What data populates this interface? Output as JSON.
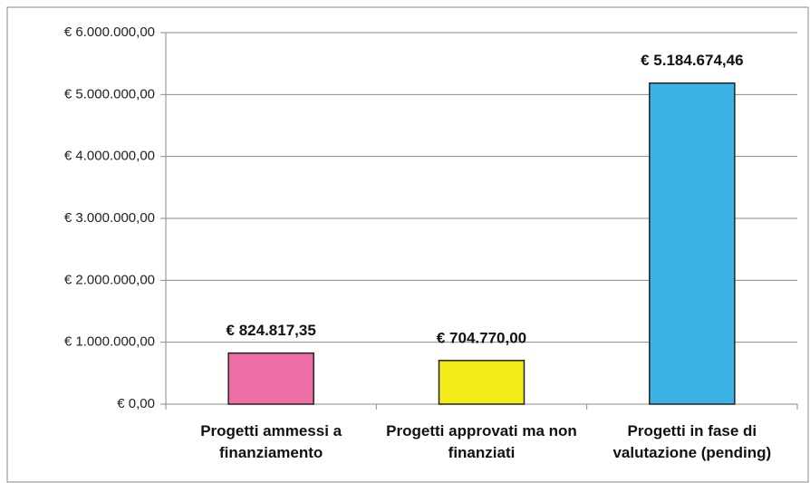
{
  "chart_data": {
    "type": "bar",
    "categories": [
      "Progetti ammessi a finanziamento",
      "Progetti approvati ma non finanziati",
      "Progetti in fase di valutazione (pending)"
    ],
    "values": [
      824817.35,
      704770.0,
      5184674.46
    ],
    "value_labels": [
      "€ 824.817,35",
      "€ 704.770,00",
      "€ 5.184.674,46"
    ],
    "colors": [
      "#f06ea6",
      "#f4ec18",
      "#3bb3e6"
    ],
    "ylim": [
      0,
      6000000
    ],
    "yticks": [
      {
        "value": 0,
        "label": "€ 0,00"
      },
      {
        "value": 1000000,
        "label": "€ 1.000.000,00"
      },
      {
        "value": 2000000,
        "label": "€ 2.000.000,00"
      },
      {
        "value": 3000000,
        "label": "€ 3.000.000,00"
      },
      {
        "value": 4000000,
        "label": "€ 4.000.000,00"
      },
      {
        "value": 5000000,
        "label": "€ 5.000.000,00"
      },
      {
        "value": 6000000,
        "label": "€ 6.000.000,00"
      }
    ],
    "grid": true
  }
}
